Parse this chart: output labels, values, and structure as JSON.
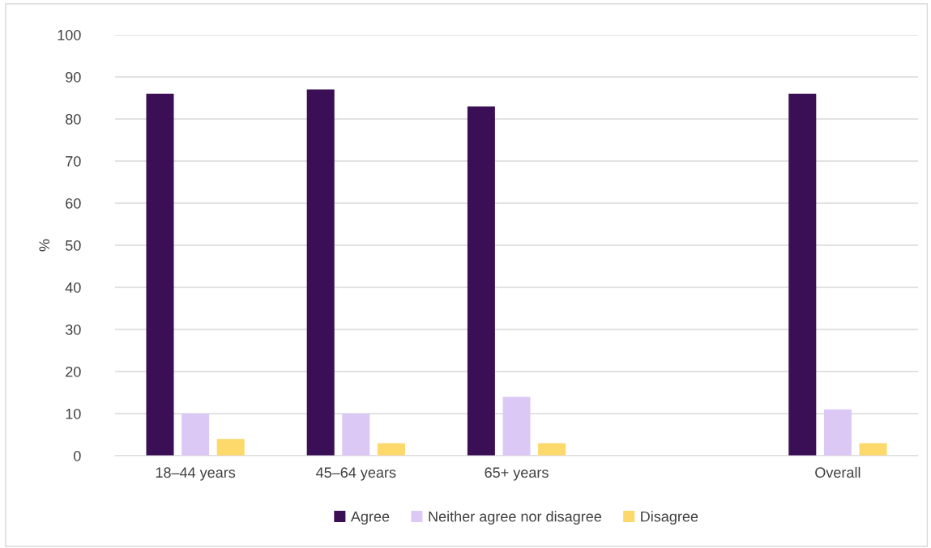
{
  "chart_data": {
    "type": "bar",
    "ylabel": "%",
    "categories": [
      "18–44 years",
      "45–64 years",
      "65+ years",
      null,
      "Overall"
    ],
    "series": [
      {
        "name": "Agree",
        "color": "#3b0f55",
        "values": [
          86,
          87,
          83,
          null,
          86
        ]
      },
      {
        "name": "Neither agree nor disagree",
        "color": "#dcc8f5",
        "values": [
          10,
          10,
          14,
          null,
          11
        ]
      },
      {
        "name": "Disagree",
        "color": "#fcd96a",
        "values": [
          4,
          3,
          3,
          null,
          3
        ]
      }
    ],
    "ylim": [
      0,
      100
    ],
    "yticks": [
      0,
      10,
      20,
      30,
      40,
      50,
      60,
      70,
      80,
      90,
      100
    ],
    "grid": "y",
    "legend": "bottom"
  }
}
